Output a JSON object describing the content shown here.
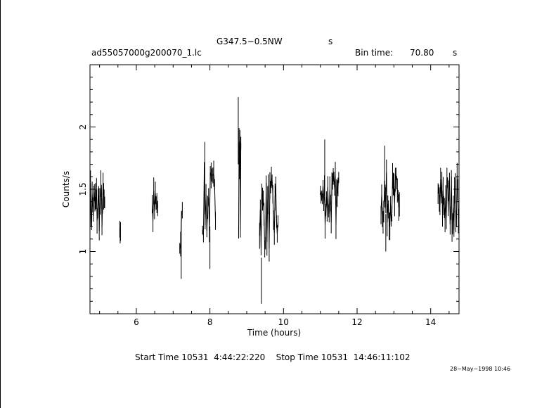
{
  "header": {
    "title": "G347.5−0.5NW",
    "title_unit": "s",
    "file_name": "ad55057000g200070_1.lc",
    "bin_label": "Bin time:",
    "bin_value": "70.80",
    "bin_unit": "s"
  },
  "footer": {
    "times": "Start Time 10531  4:44:22:220    Stop Time 10531  14:46:11:102",
    "date_stamp": "28−May−1998 10:46"
  },
  "chart_data": {
    "type": "line",
    "title": "G347.5−0.5NW",
    "xlabel": "Time (hours)",
    "ylabel": "Counts/s",
    "xlim": [
      4.74,
      14.77
    ],
    "ylim": [
      0.5,
      2.5
    ],
    "xticks": [
      "6",
      "8",
      "10",
      "12",
      "14"
    ],
    "yticks": [
      "1",
      "1.5",
      "2"
    ],
    "grid": false,
    "segments": [
      {
        "t0": 4.74,
        "t1": 5.14,
        "n": 28,
        "mean": 1.36,
        "amp": 0.22
      },
      {
        "t0": 5.55,
        "t1": 5.57,
        "n": 3,
        "mean": 1.22,
        "amp": 0.22
      },
      {
        "t0": 6.43,
        "t1": 6.58,
        "n": 8,
        "mean": 1.34,
        "amp": 0.18
      },
      {
        "t0": 7.18,
        "t1": 7.25,
        "n": 4,
        "mean": 1.12,
        "amp": 0.28
      },
      {
        "t0": 7.8,
        "t1": 8.15,
        "n": 16,
        "mean": 1.38,
        "amp": 0.3
      },
      {
        "t0": 8.78,
        "t1": 8.84,
        "n": 6,
        "mean": 1.55,
        "amp": 0.4
      },
      {
        "t0": 9.35,
        "t1": 9.85,
        "n": 26,
        "mean": 1.3,
        "amp": 0.3
      },
      {
        "t0": 11.0,
        "t1": 11.5,
        "n": 28,
        "mean": 1.42,
        "amp": 0.22
      },
      {
        "t0": 12.65,
        "t1": 13.15,
        "n": 28,
        "mean": 1.42,
        "amp": 0.22
      },
      {
        "t0": 14.2,
        "t1": 14.77,
        "n": 34,
        "mean": 1.4,
        "amp": 0.24
      }
    ],
    "spikes": [
      {
        "t": 8.77,
        "y0": 1.7,
        "y1": 2.24
      },
      {
        "t": 9.4,
        "y0": 0.58,
        "y1": 0.95
      },
      {
        "t": 7.22,
        "y0": 0.78,
        "y1": 1.25
      },
      {
        "t": 7.86,
        "y0": 1.3,
        "y1": 1.88
      },
      {
        "t": 8.0,
        "y0": 0.86,
        "y1": 1.2
      },
      {
        "t": 11.12,
        "y0": 1.4,
        "y1": 1.9
      },
      {
        "t": 12.78,
        "y0": 1.0,
        "y1": 1.3
      },
      {
        "t": 12.75,
        "y0": 1.5,
        "y1": 1.85
      }
    ]
  }
}
